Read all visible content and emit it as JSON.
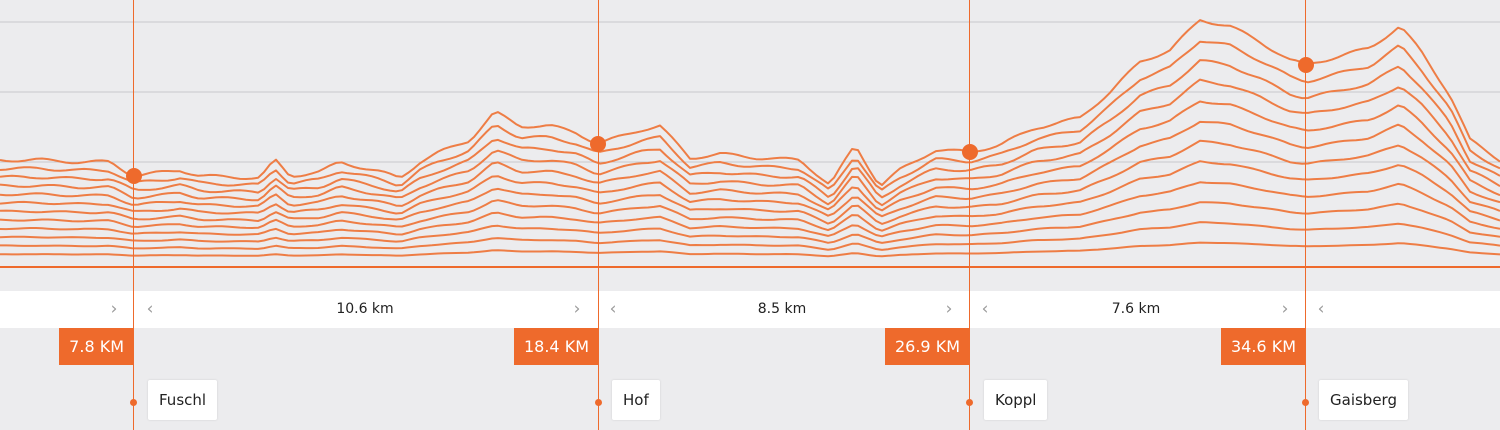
{
  "accent_color": "#ee6a2c",
  "segments": [
    {
      "distance": "10.6 km"
    },
    {
      "distance": "8.5 km"
    },
    {
      "distance": "7.6 km"
    }
  ],
  "markers": [
    {
      "km": "7.8 KM",
      "place": "Fuschl"
    },
    {
      "km": "18.4 KM",
      "place": "Hof"
    },
    {
      "km": "26.9 KM",
      "place": "Koppl"
    },
    {
      "km": "34.6 KM",
      "place": "Gaisberg"
    }
  ],
  "icons": {
    "prev": "chevron-left-icon",
    "next": "chevron-right-icon",
    "marker": "location-dot-icon"
  }
}
